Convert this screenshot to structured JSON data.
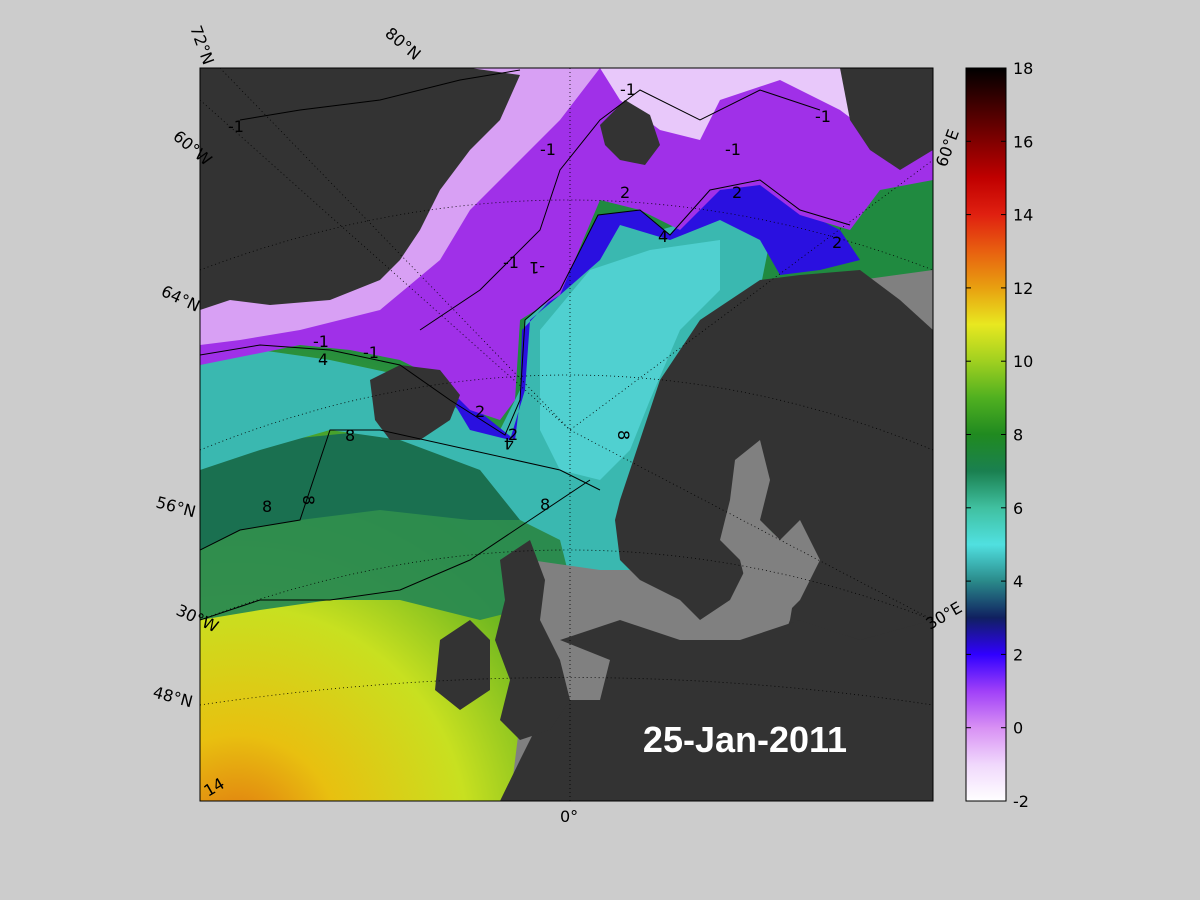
{
  "map": {
    "date_label": "25-Jan-2011",
    "grid_labels": {
      "lat72": "72°N",
      "lat80": "80°N",
      "lat64": "64°N",
      "lat56": "56°N",
      "lat48": "48°N",
      "lon60w": "60°W",
      "lon30w": "30°W",
      "lon0": "0°",
      "lon30e": "30°E",
      "lon60e": "60°E"
    },
    "contour_labels": [
      "-1",
      "-1",
      "-1",
      "-1",
      "-1",
      "-1",
      "-1",
      "-1",
      "-1",
      "2",
      "2",
      "2",
      "2",
      "2",
      "4",
      "4",
      "4",
      "8",
      "8",
      "8",
      "8",
      "8",
      "14"
    ],
    "colors": {
      "background": "#cccccc",
      "land": "#333333",
      "shelf": "#808080"
    }
  },
  "colorbar": {
    "ticks": [
      "18",
      "16",
      "14",
      "12",
      "10",
      "8",
      "6",
      "4",
      "2",
      "0",
      "-2"
    ],
    "min": -2,
    "max": 18,
    "colormap": [
      "#ffffff",
      "#e0a8f8",
      "#9b30ff",
      "#3000ff",
      "#003050",
      "#2a9090",
      "#50e0e0",
      "#40c090",
      "#1a8050",
      "#208a20",
      "#90d020",
      "#e8e820",
      "#e89010",
      "#e04010",
      "#c00000",
      "#500000",
      "#000000"
    ]
  }
}
